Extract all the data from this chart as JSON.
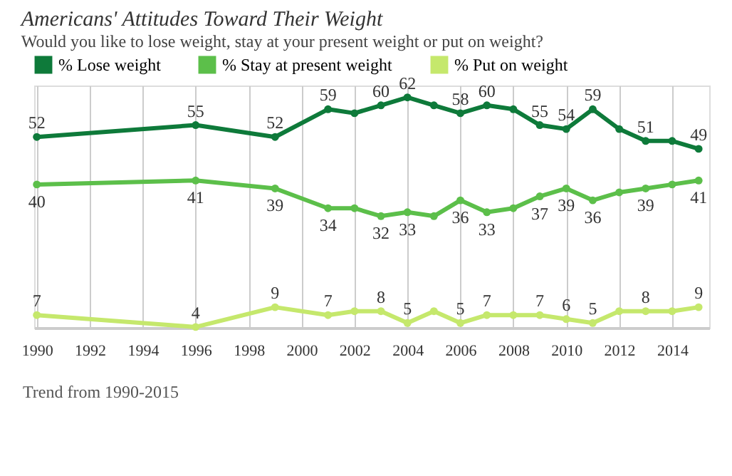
{
  "chart_data": {
    "type": "line",
    "title": "Americans' Attitudes Toward Their Weight",
    "subtitle": "Would you like to lose weight, stay at your present weight or put on weight?",
    "x": [
      1990,
      1996,
      1999,
      2001,
      2002,
      2003,
      2004,
      2005,
      2006,
      2007,
      2008,
      2009,
      2010,
      2011,
      2012,
      2013,
      2014,
      2015
    ],
    "series": [
      {
        "name": "% Lose weight",
        "color": "#0e7a3a",
        "values": [
          52,
          55,
          52,
          59,
          58,
          60,
          62,
          60,
          58,
          60,
          59,
          55,
          54,
          59,
          54,
          51,
          51,
          49
        ],
        "value_labels": [
          "52",
          "55",
          "52",
          "59",
          null,
          "60",
          "62",
          null,
          "58",
          "60",
          null,
          "55",
          "54",
          "59",
          null,
          "51",
          null,
          "49"
        ]
      },
      {
        "name": "% Stay at present weight",
        "color": "#5cbf4a",
        "values": [
          40,
          41,
          39,
          34,
          34,
          32,
          33,
          32,
          36,
          33,
          34,
          37,
          39,
          36,
          38,
          39,
          40,
          41
        ],
        "value_labels": [
          "40",
          "41",
          "39",
          "34",
          null,
          "32",
          "33",
          null,
          "36",
          "33",
          null,
          "37",
          "39",
          "36",
          null,
          "39",
          null,
          "41"
        ]
      },
      {
        "name": "% Put on weight",
        "color": "#c5e86c",
        "values": [
          7,
          4,
          9,
          7,
          8,
          8,
          5,
          8,
          5,
          7,
          7,
          7,
          6,
          5,
          8,
          8,
          8,
          9
        ],
        "value_labels": [
          "7",
          "4",
          "9",
          "7",
          null,
          "8",
          "5",
          null,
          "5",
          "7",
          null,
          "7",
          "6",
          "5",
          null,
          "8",
          null,
          "9"
        ]
      }
    ],
    "xlim": [
      1989.9,
      2015.4
    ],
    "xticks": [
      1990,
      1992,
      1994,
      1996,
      1998,
      2000,
      2002,
      2004,
      2006,
      2008,
      2010,
      2012,
      2014
    ],
    "ylim": [
      3.8,
      65
    ],
    "tick_labels": "x",
    "grid": "x",
    "legend": "top left",
    "marker": "circle",
    "line_style": "solid",
    "annotations": [
      "Trend from 1990-2015"
    ]
  }
}
